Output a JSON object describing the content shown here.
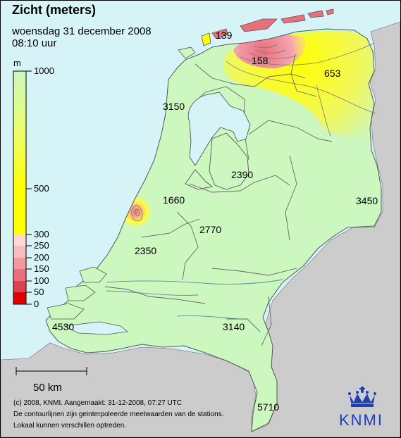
{
  "map": {
    "title": "Zicht (meters)",
    "date": "woensdag 31 december 2008",
    "time": "08:10 uur",
    "colors": {
      "sea": "#d6f4f8",
      "foreign_land": "#cccccc",
      "visibility_high": "#ccf7bf",
      "visibility_mid": "#ffff00",
      "visibility_low": "#e8707c"
    }
  },
  "legend": {
    "unit": "m",
    "ticks": [
      "1000",
      "500",
      "300",
      "250",
      "200",
      "150",
      "100",
      "50",
      "0"
    ]
  },
  "stations": [
    {
      "id": "vlieland",
      "label": "139",
      "value": 139
    },
    {
      "id": "lauwersoog",
      "label": "158",
      "value": 158
    },
    {
      "id": "eelde",
      "label": "653",
      "value": 653
    },
    {
      "id": "de-kooy",
      "label": "3150",
      "value": 3150
    },
    {
      "id": "lelystad",
      "label": "2390",
      "value": 2390
    },
    {
      "id": "schiphol",
      "label": "1660",
      "value": 1660
    },
    {
      "id": "twenthe",
      "label": "3450",
      "value": 3450
    },
    {
      "id": "de-bilt",
      "label": "2770",
      "value": 2770
    },
    {
      "id": "rotterdam",
      "label": "2350",
      "value": 2350
    },
    {
      "id": "vlissingen",
      "label": "4530",
      "value": 4530
    },
    {
      "id": "eindhoven",
      "label": "3140",
      "value": 3140
    },
    {
      "id": "maastricht",
      "label": "5710",
      "value": 5710
    }
  ],
  "scale_bar": {
    "label": "50 km"
  },
  "footer": {
    "copyright": "(c) 2008, KNMI. Aangemaakt: 31-12-2008, 07:27 UTC",
    "line2": "De contourlijnen zijn geinterpoleerde meetwaarden van de stations.",
    "line3": "Lokaal kunnen verschillen optreden."
  },
  "logo": {
    "text": "KNMI",
    "icon": "crown-icon"
  }
}
